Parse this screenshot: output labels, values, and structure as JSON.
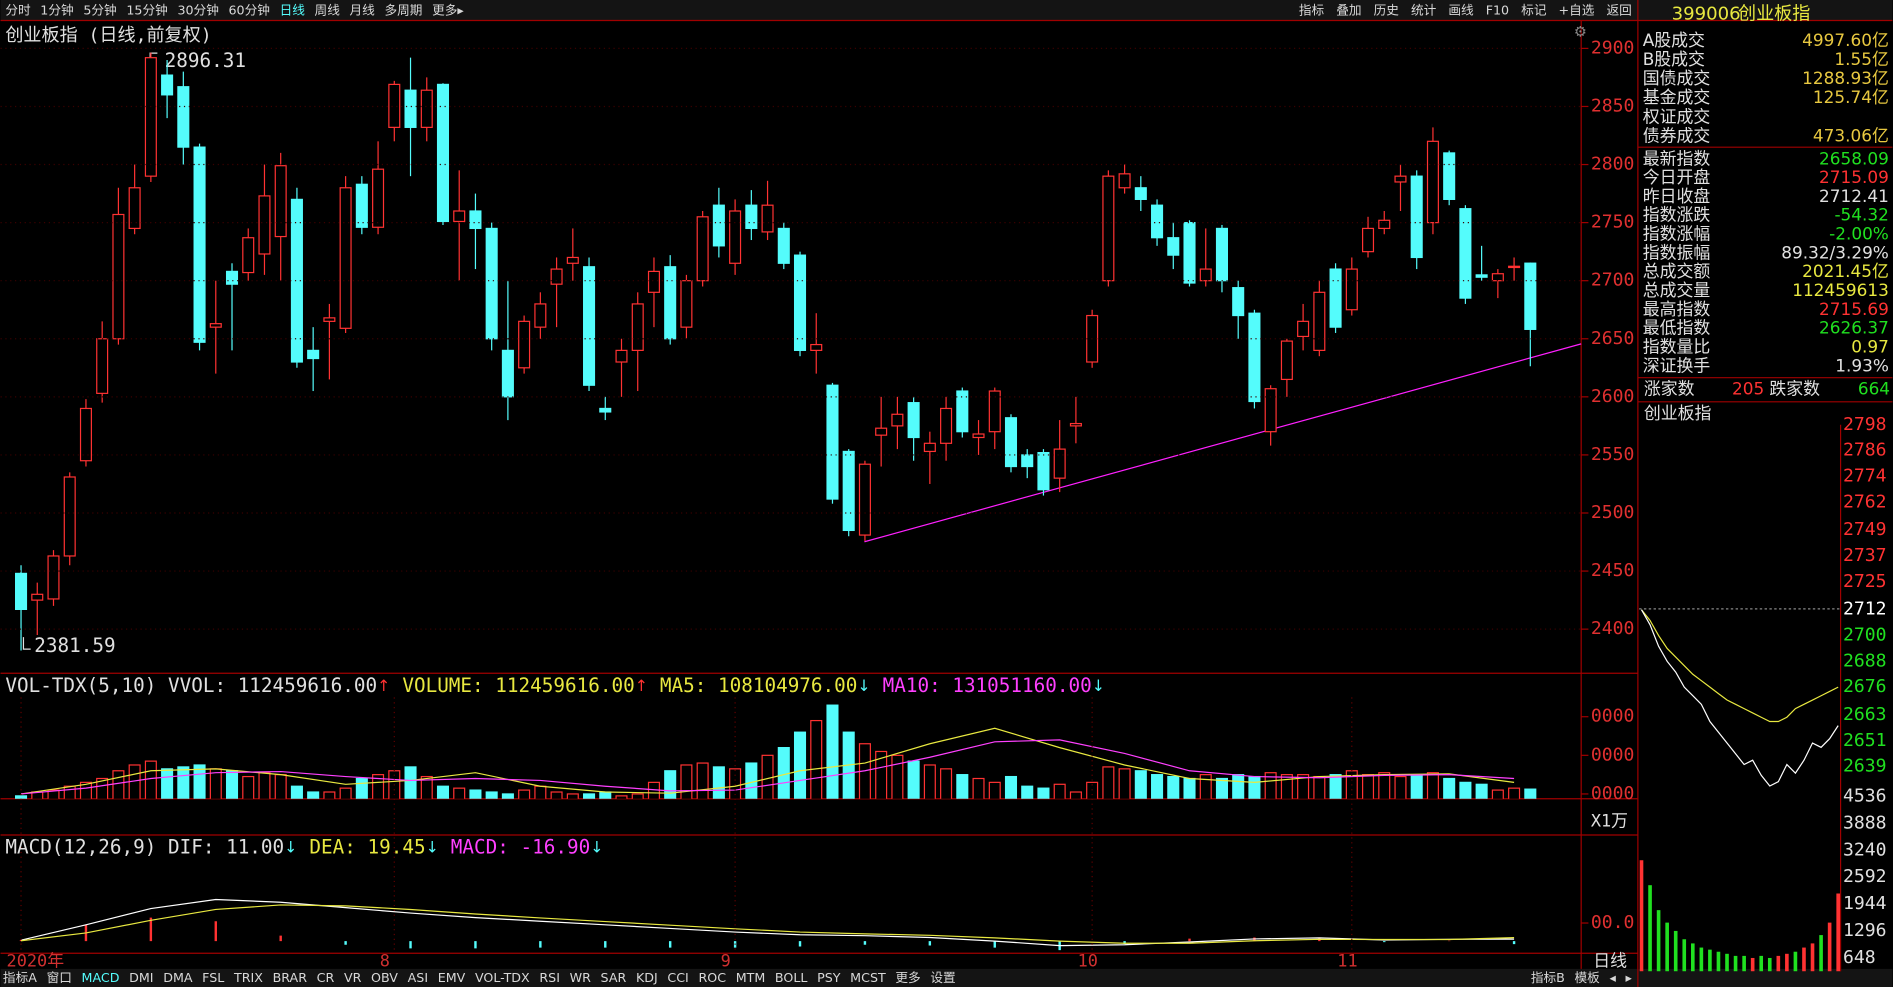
{
  "toolbar": {
    "periods": [
      "分时",
      "1分钟",
      "5分钟",
      "15分钟",
      "30分钟",
      "60分钟",
      "日线",
      "周线",
      "月线",
      "多周期",
      "更多▸"
    ],
    "tools": [
      "指标",
      "叠加",
      "历史",
      "统计",
      "画线",
      "F10",
      "标记",
      "+自选",
      "返回"
    ]
  },
  "main": {
    "title": "创业板指 (日线,前复权)",
    "high_label": "2896.31",
    "low_label": "2381.59",
    "ylim": [
      2362,
      2924
    ],
    "yticks": [
      2400,
      2450,
      2500,
      2550,
      2600,
      2650,
      2700,
      2750,
      2800,
      2850,
      2900
    ],
    "categories": [
      "2020年",
      null,
      null,
      null,
      null,
      null,
      null,
      null,
      null,
      null,
      null,
      null,
      null,
      null,
      null,
      null,
      null,
      null,
      null,
      null,
      null,
      null,
      null,
      "8",
      null,
      null,
      null,
      null,
      null,
      null,
      null,
      null,
      null,
      null,
      null,
      null,
      null,
      null,
      null,
      null,
      null,
      null,
      null,
      null,
      "9",
      null,
      null,
      null,
      null,
      null,
      null,
      null,
      null,
      null,
      null,
      null,
      null,
      null,
      null,
      null,
      null,
      null,
      null,
      null,
      null,
      null,
      "10",
      null,
      null,
      null,
      null,
      null,
      null,
      null,
      null,
      null,
      null,
      null,
      null,
      null,
      null,
      null,
      "11",
      null,
      null,
      null,
      null,
      null,
      null,
      null,
      null,
      null,
      null,
      null
    ],
    "period_label": "日线",
    "candles": [
      [
        2448,
        2455,
        2381.59,
        2417
      ],
      [
        2425,
        2440,
        2395,
        2430
      ],
      [
        2426,
        2468,
        2420,
        2463
      ],
      [
        2463,
        2535,
        2455,
        2531
      ],
      [
        2545,
        2598,
        2540,
        2590
      ],
      [
        2603,
        2665,
        2595,
        2650
      ],
      [
        2650,
        2780,
        2645,
        2757
      ],
      [
        2745,
        2800,
        2740,
        2780
      ],
      [
        2790,
        2896.31,
        2785,
        2892
      ],
      [
        2877,
        2890,
        2840,
        2860
      ],
      [
        2867,
        2880,
        2800,
        2815
      ],
      [
        2815,
        2818,
        2640,
        2647
      ],
      [
        2660,
        2700,
        2620,
        2663
      ],
      [
        2708,
        2715,
        2640,
        2697
      ],
      [
        2707,
        2745,
        2700,
        2737
      ],
      [
        2723,
        2800,
        2705,
        2773
      ],
      [
        2738,
        2810,
        2700,
        2799
      ],
      [
        2770,
        2780,
        2625,
        2630
      ],
      [
        2640,
        2660,
        2605,
        2633
      ],
      [
        2665,
        2680,
        2615,
        2668
      ],
      [
        2659,
        2790,
        2655,
        2780
      ],
      [
        2783,
        2790,
        2740,
        2746
      ],
      [
        2746,
        2820,
        2740,
        2796
      ],
      [
        2832,
        2872,
        2820,
        2869
      ],
      [
        2864,
        2892,
        2790,
        2832
      ],
      [
        2832,
        2875,
        2820,
        2864
      ],
      [
        2869,
        2870,
        2748,
        2751
      ],
      [
        2751,
        2795,
        2700,
        2760
      ],
      [
        2760,
        2775,
        2710,
        2745
      ],
      [
        2745,
        2750,
        2640,
        2650
      ],
      [
        2640,
        2700,
        2580,
        2600
      ],
      [
        2625,
        2670,
        2620,
        2665
      ],
      [
        2660,
        2690,
        2650,
        2680
      ],
      [
        2697,
        2720,
        2660,
        2710
      ],
      [
        2715,
        2745,
        2700,
        2720
      ],
      [
        2712,
        2720,
        2605,
        2610
      ],
      [
        2590,
        2600,
        2580,
        2587
      ],
      [
        2630,
        2650,
        2600,
        2640
      ],
      [
        2640,
        2690,
        2605,
        2680
      ],
      [
        2690,
        2720,
        2660,
        2708
      ],
      [
        2712,
        2722,
        2645,
        2650
      ],
      [
        2660,
        2705,
        2650,
        2700
      ],
      [
        2700,
        2760,
        2695,
        2755
      ],
      [
        2765,
        2780,
        2720,
        2730
      ],
      [
        2715,
        2770,
        2705,
        2760
      ],
      [
        2765,
        2778,
        2735,
        2745
      ],
      [
        2742,
        2786,
        2735,
        2765
      ],
      [
        2745,
        2750,
        2710,
        2715
      ],
      [
        2722,
        2725,
        2635,
        2640
      ],
      [
        2640,
        2672,
        2620,
        2645
      ],
      [
        2610,
        2612,
        2508,
        2512
      ],
      [
        2553,
        2555,
        2480,
        2485
      ],
      [
        2481,
        2545,
        2476,
        2542
      ],
      [
        2567,
        2600,
        2540,
        2573
      ],
      [
        2575,
        2600,
        2555,
        2585
      ],
      [
        2595,
        2600,
        2545,
        2565
      ],
      [
        2553,
        2570,
        2525,
        2560
      ],
      [
        2560,
        2600,
        2545,
        2590
      ],
      [
        2605,
        2608,
        2565,
        2570
      ],
      [
        2565,
        2580,
        2550,
        2568
      ],
      [
        2570,
        2608,
        2555,
        2605
      ],
      [
        2582,
        2585,
        2535,
        2540
      ],
      [
        2550,
        2555,
        2530,
        2540
      ],
      [
        2552,
        2555,
        2515,
        2520
      ],
      [
        2530,
        2580,
        2518,
        2555
      ],
      [
        2575,
        2600,
        2560,
        2577
      ],
      [
        2630,
        2675,
        2625,
        2670
      ],
      [
        2700,
        2795,
        2695,
        2790
      ],
      [
        2780,
        2800,
        2775,
        2792
      ],
      [
        2780,
        2790,
        2760,
        2770
      ],
      [
        2765,
        2770,
        2730,
        2737
      ],
      [
        2737,
        2750,
        2710,
        2722
      ],
      [
        2750,
        2752,
        2695,
        2698
      ],
      [
        2700,
        2745,
        2695,
        2710
      ],
      [
        2745,
        2748,
        2690,
        2700
      ],
      [
        2694,
        2700,
        2650,
        2670
      ],
      [
        2672,
        2675,
        2590,
        2596
      ],
      [
        2570,
        2610,
        2558,
        2607
      ],
      [
        2615,
        2650,
        2600,
        2648
      ],
      [
        2652,
        2680,
        2640,
        2665
      ],
      [
        2640,
        2700,
        2635,
        2690
      ],
      [
        2710,
        2715,
        2655,
        2660
      ],
      [
        2675,
        2720,
        2670,
        2710
      ],
      [
        2725,
        2755,
        2720,
        2745
      ],
      [
        2745,
        2760,
        2740,
        2752
      ],
      [
        2785,
        2800,
        2760,
        2790
      ],
      [
        2790,
        2795,
        2710,
        2720
      ],
      [
        2750,
        2832,
        2740,
        2820
      ],
      [
        2810,
        2812,
        2765,
        2770
      ],
      [
        2762,
        2765,
        2680,
        2685
      ],
      [
        2705,
        2730,
        2700,
        2703
      ],
      [
        2700,
        2710,
        2685,
        2706
      ],
      [
        2712,
        2720,
        2700,
        2712.41
      ],
      [
        2715.09,
        2715.69,
        2626.37,
        2658.09
      ]
    ]
  },
  "volume": {
    "legend": [
      {
        "text": "VOL-TDX(5,10) VVOL: 112459616.00",
        "arrow": "↑",
        "color": "#e0e0e0",
        "arrow_color": "#ff3232"
      },
      {
        "text": "VOLUME: 112459616.00",
        "arrow": "↑",
        "color": "#e8e840",
        "arrow_color": "#ff3232"
      },
      {
        "text": "MA5: 108104976.00",
        "arrow": "↓",
        "color": "#e8e840",
        "arrow_color": "#54fcfc"
      },
      {
        "text": "MA10: 131051160.00",
        "arrow": "↓",
        "color": "#ff40ff",
        "arrow_color": "#54fcfc"
      }
    ],
    "unit": "X1万",
    "ylim": [
      8750,
      35000
    ],
    "yticks": [
      {
        "value": 30000,
        "label": "0000"
      },
      {
        "value": 20000,
        "label": "0000"
      },
      {
        "value": 10000,
        "label": "0000"
      }
    ],
    "values": [
      9500,
      10500,
      11000,
      12000,
      13000,
      14000,
      16000,
      17500,
      18500,
      16500,
      17000,
      17500,
      16500,
      16000,
      14500,
      15500,
      15000,
      12000,
      10500,
      10500,
      11500,
      14000,
      15000,
      16000,
      17000,
      14500,
      12000,
      11500,
      11000,
      10500,
      10000,
      11000,
      12000,
      10500,
      10000,
      10000,
      10500,
      9500,
      10000,
      13000,
      16000,
      17500,
      18000,
      17000,
      16500,
      18000,
      20000,
      22000,
      26000,
      29000,
      33000,
      26000,
      23000,
      21000,
      20000,
      18500,
      17500,
      16500,
      15000,
      14000,
      13000,
      14500,
      12000,
      11500,
      12500,
      10500,
      13000,
      17000,
      16500,
      16000,
      15000,
      14500,
      14000,
      15000,
      14000,
      15000,
      14500,
      15500,
      15000,
      15000,
      14500,
      15000,
      16000,
      15000,
      15500,
      14500,
      15000,
      15500,
      14000,
      13000,
      12500,
      11000,
      11500,
      11245.96
    ],
    "ma_x": [
      0,
      4,
      8,
      12,
      16,
      20,
      24,
      28,
      32,
      36,
      40,
      44,
      48,
      52,
      56,
      60,
      64,
      68,
      72,
      76,
      80,
      84,
      88,
      92
    ],
    "ma5": {
      "color": "#e8e840",
      "values": [
        10000,
        12500,
        16000,
        16500,
        15000,
        12500,
        13500,
        15500,
        12000,
        10500,
        10200,
        12000,
        16000,
        18000,
        23000,
        27000,
        22000,
        17500,
        14000,
        13000,
        14500,
        15000,
        15200,
        13000
      ]
    },
    "ma10": {
      "color": "#ff40ff",
      "values": [
        10000,
        11500,
        14000,
        15500,
        15800,
        14500,
        13500,
        14000,
        13500,
        12000,
        10800,
        11000,
        13500,
        16000,
        19500,
        23500,
        24000,
        20500,
        16000,
        14500,
        14200,
        14800,
        15000,
        14000
      ]
    }
  },
  "macd": {
    "legend": [
      {
        "text": "MACD(12,26,9) DIF: 11.00",
        "arrow": "↓",
        "color": "#e0e0e0",
        "arrow_color": "#54fcfc"
      },
      {
        "text": "DEA: 19.45",
        "arrow": "↓",
        "color": "#e8e840",
        "arrow_color": "#54fcfc"
      },
      {
        "text": "MACD: -16.90",
        "arrow": "↓",
        "color": "#ff40ff",
        "arrow_color": "#54fcfc"
      }
    ],
    "ylim": [
      -67,
      587
    ],
    "yticks": [
      {
        "value": 100,
        "label": "00.0"
      }
    ],
    "x": [
      0,
      4,
      8,
      12,
      16,
      20,
      24,
      28,
      32,
      36,
      40,
      44,
      48,
      52,
      56,
      60,
      64,
      68,
      72,
      76,
      80,
      84,
      88,
      92
    ],
    "dif": {
      "color": "#ffffff",
      "values": [
        5,
        90,
        180,
        230,
        215,
        185,
        155,
        130,
        110,
        90,
        70,
        50,
        35,
        30,
        20,
        0,
        -25,
        -20,
        -5,
        12,
        18,
        6,
        10,
        11
      ]
    },
    "dea": {
      "color": "#e8e840",
      "values": [
        2,
        45,
        115,
        175,
        200,
        195,
        175,
        150,
        128,
        108,
        88,
        68,
        50,
        40,
        32,
        18,
        0,
        -12,
        -12,
        2,
        10,
        9,
        9,
        19.45
      ]
    },
    "hist": [
      6,
      90,
      130,
      110,
      30,
      -20,
      -40,
      -40,
      -36,
      -36,
      -36,
      -36,
      -30,
      -20,
      -24,
      -36,
      -50,
      -16,
      14,
      20,
      16,
      -6,
      2,
      -16.9
    ]
  },
  "bottom_tabs": {
    "left": [
      "指标A",
      "窗口",
      "MACD",
      "DMI",
      "DMA",
      "FSL",
      "TRIX",
      "BRAR",
      "CR",
      "VR",
      "OBV",
      "ASI",
      "EMV",
      "VOL-TDX",
      "RSI",
      "WR",
      "SAR",
      "KDJ",
      "CCI",
      "ROC",
      "MTM",
      "BOLL",
      "PSY",
      "MCST",
      "更多",
      "设置"
    ],
    "right": [
      "指标B",
      "模板",
      "◂",
      "▸"
    ]
  },
  "quote": {
    "code": "399006",
    "name": "创业板指",
    "rows_top": [
      {
        "label": "A股成交",
        "value": "4997.60亿",
        "color": "#e8c840"
      },
      {
        "label": "B股成交",
        "value": "1.55亿",
        "color": "#e8c840"
      },
      {
        "label": "国债成交",
        "value": "1288.93亿",
        "color": "#e8c840"
      },
      {
        "label": "基金成交",
        "value": "125.74亿",
        "color": "#e8c840"
      },
      {
        "label": "权证成交"
      },
      {
        "label": "债券成交",
        "value": "473.06亿",
        "color": "#e8c840"
      }
    ],
    "rows": [
      {
        "label": "最新指数",
        "value": "2658.09",
        "color": "#20e020"
      },
      {
        "label": "今日开盘",
        "value": "2715.09",
        "color": "#ff3232"
      },
      {
        "label": "昨日收盘",
        "value": "2712.41",
        "color": "#e0e0e0"
      },
      {
        "label": "指数涨跌",
        "value": "-54.32",
        "color": "#20e020"
      },
      {
        "label": "指数涨幅",
        "value": "-2.00%",
        "color": "#20e020"
      },
      {
        "label": "指数振幅",
        "value": "89.32/3.29%",
        "color": "#e0e0e0"
      },
      {
        "label": "总成交额",
        "value": "2021.45亿",
        "color": "#e8e840"
      },
      {
        "label": "总成交量",
        "value": "112459613",
        "color": "#e8e840"
      },
      {
        "label": "最高指数",
        "value": "2715.69",
        "color": "#ff3232"
      },
      {
        "label": "最低指数",
        "value": "2626.37",
        "color": "#20e020"
      },
      {
        "label": "指数量比",
        "value": "0.97",
        "color": "#e8e840"
      },
      {
        "label": "深证换手",
        "value": "1.93%",
        "color": "#e0e0e0"
      }
    ],
    "up_label": "涨家数",
    "up": "205",
    "down_label": "跌家数",
    "down": "664"
  },
  "mini": {
    "title": "创业板指",
    "prev_close": 2712.41,
    "ylim": [
      2628,
      2802
    ],
    "yticks": [
      2798,
      2786,
      2774,
      2762,
      2749,
      2737,
      2725,
      2712,
      2700,
      2688,
      2676,
      2663,
      2651,
      2639
    ],
    "vol_ylim": [
      329,
      4826
    ],
    "vol_ticks": [
      4536,
      3888,
      3240,
      2592,
      1944,
      1296,
      648
    ],
    "price": [
      2712,
      2705,
      2695,
      2688,
      2683,
      2676,
      2672,
      2668,
      2660,
      2655,
      2650,
      2645,
      2640,
      2642,
      2635,
      2630,
      2632,
      2640,
      2636,
      2642,
      2650,
      2648,
      2652,
      2658.09
    ],
    "avg": [
      2712,
      2707,
      2700,
      2694,
      2690,
      2686,
      2682,
      2679,
      2676,
      2673,
      2670,
      2668,
      2666,
      2664,
      2662,
      2660,
      2660,
      2662,
      2666,
      2668,
      2670,
      2672,
      2674,
      2676
    ],
    "volume": [
      3000,
      2400,
      1800,
      1500,
      1300,
      1100,
      1000,
      900,
      850,
      800,
      750,
      700,
      700,
      650,
      700,
      650,
      700,
      750,
      800,
      900,
      1000,
      1200,
      1500,
      2200
    ]
  }
}
